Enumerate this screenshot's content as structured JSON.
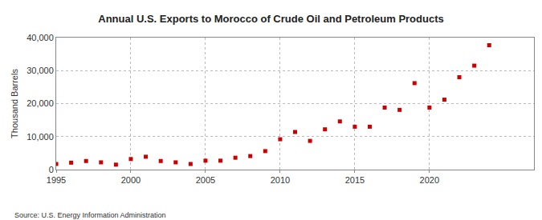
{
  "chart_data": {
    "type": "scatter",
    "title": "Annual U.S. Exports to Morocco of Crude Oil and Petroleum Products",
    "y_label": "Thousand Barrels",
    "annotations": [
      "Source: U.S. Energy Information Administration"
    ],
    "x": [
      1995,
      1996,
      1997,
      1998,
      1999,
      2000,
      2001,
      2002,
      2003,
      2004,
      2005,
      2006,
      2007,
      2008,
      2009,
      2010,
      2011,
      2012,
      2013,
      2014,
      2015,
      2016,
      2017,
      2018,
      2019,
      2020,
      2021,
      2022,
      2023,
      2024
    ],
    "values": [
      1700,
      2100,
      2600,
      2200,
      1500,
      3200,
      3900,
      2600,
      2200,
      1700,
      2700,
      2700,
      3600,
      4100,
      5600,
      9200,
      11400,
      8700,
      12200,
      14600,
      13000,
      13000,
      18800,
      18100,
      26200,
      18800,
      21200,
      28000,
      31500,
      37700
    ],
    "color": "#cc0000",
    "marker": "square",
    "xlim": [
      1995,
      2027
    ],
    "xticks": [
      1995,
      2000,
      2005,
      2010,
      2015,
      2020
    ],
    "ylim": [
      0,
      40000
    ],
    "yticks": [
      0,
      {
        "value": 10000,
        "label": "10,000"
      },
      {
        "value": 20000,
        "label": "20,000"
      },
      {
        "value": 30000,
        "label": "30,000"
      },
      {
        "value": 40000,
        "label": "40,000"
      }
    ],
    "grid": true
  }
}
